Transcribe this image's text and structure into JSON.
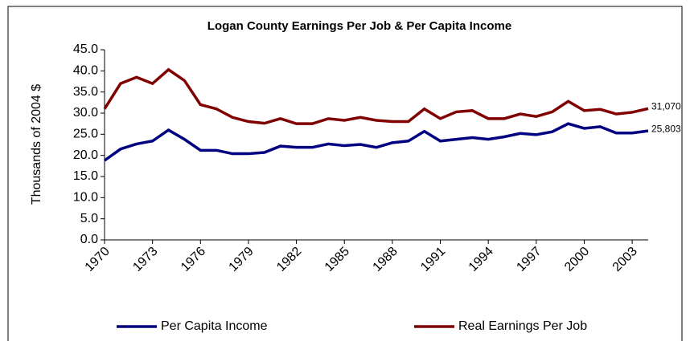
{
  "chart_data": {
    "type": "line",
    "title": "Logan County Earnings Per Job & Per Capita Income",
    "y_label": "Thousands of 2004 $",
    "x": [
      1970,
      1971,
      1972,
      1973,
      1974,
      1975,
      1976,
      1977,
      1978,
      1979,
      1980,
      1981,
      1982,
      1983,
      1984,
      1985,
      1986,
      1987,
      1988,
      1989,
      1990,
      1991,
      1992,
      1993,
      1994,
      1995,
      1996,
      1997,
      1998,
      1999,
      2000,
      2001,
      2002,
      2003,
      2004
    ],
    "xlim": [
      1970,
      2004
    ],
    "xticks": [
      1970,
      1973,
      1976,
      1979,
      1982,
      1985,
      1988,
      1991,
      1994,
      1997,
      2000,
      2003
    ],
    "ylim": [
      0,
      45
    ],
    "yticks": [
      {
        "value": 0,
        "label": "0.0"
      },
      {
        "value": 5,
        "label": "5.0"
      },
      {
        "value": 10,
        "label": "10.0"
      },
      {
        "value": 15,
        "label": "15.0"
      },
      {
        "value": 20,
        "label": "20.0"
      },
      {
        "value": 25,
        "label": "25.0"
      },
      {
        "value": 30,
        "label": "30.0"
      },
      {
        "value": 35,
        "label": "35.0"
      },
      {
        "value": 40,
        "label": "40.0"
      },
      {
        "value": 45,
        "label": "45.0"
      }
    ],
    "grid": false,
    "legend": "bottom",
    "series": [
      {
        "name": "Per Capita Income",
        "color": "#000080",
        "values": [
          18.8,
          21.5,
          22.7,
          23.4,
          26,
          23.8,
          21.2,
          21.2,
          20.4,
          20.4,
          20.7,
          22.2,
          21.9,
          21.9,
          22.7,
          22.3,
          22.6,
          21.9,
          23,
          23.4,
          25.7,
          23.4,
          23.8,
          24.2,
          23.8,
          24.4,
          25.2,
          24.9,
          25.6,
          27.5,
          26.4,
          26.8,
          25.3,
          25.3,
          25.803
        ],
        "value_labels": [
          null,
          null,
          null,
          null,
          null,
          null,
          null,
          null,
          null,
          null,
          null,
          null,
          null,
          null,
          null,
          null,
          null,
          null,
          null,
          null,
          null,
          null,
          null,
          null,
          null,
          null,
          null,
          null,
          null,
          null,
          null,
          null,
          null,
          null,
          "25,803"
        ]
      },
      {
        "name": "Real Earnings Per Job",
        "color": "#800000",
        "values": [
          31,
          37,
          38.5,
          37,
          40.3,
          37.7,
          32,
          31,
          29,
          28,
          27.6,
          28.7,
          27.5,
          27.5,
          28.7,
          28.3,
          29,
          28.3,
          28,
          28,
          31,
          28.7,
          30.3,
          30.6,
          28.7,
          28.7,
          29.8,
          29.2,
          30.3,
          32.8,
          30.6,
          30.9,
          29.8,
          30.2,
          31.07
        ],
        "value_labels": [
          null,
          null,
          null,
          null,
          null,
          null,
          null,
          null,
          null,
          null,
          null,
          null,
          null,
          null,
          null,
          null,
          null,
          null,
          null,
          null,
          null,
          null,
          null,
          null,
          null,
          null,
          null,
          null,
          null,
          null,
          null,
          null,
          null,
          null,
          "31,070"
        ]
      }
    ]
  }
}
